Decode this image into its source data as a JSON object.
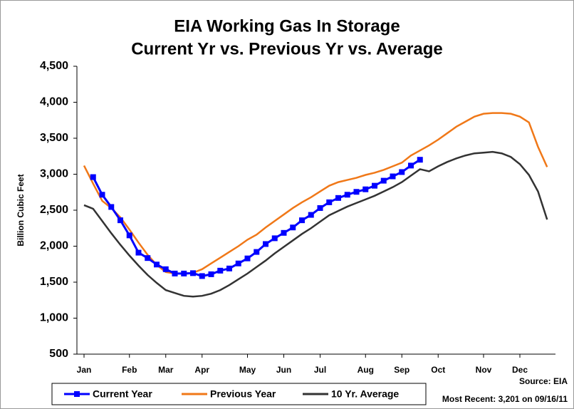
{
  "chart_data": {
    "type": "line",
    "title": "EIA Working Gas In Storage",
    "subtitle": "Current Yr vs. Previous Yr vs. Average",
    "y_label": "Billion Cubic Feet",
    "annotations": [
      "Source: EIA",
      "Most Recent: 3,201 on 09/16/11"
    ],
    "categories": [
      "Jan",
      null,
      null,
      null,
      null,
      "Feb",
      null,
      null,
      null,
      "Mar",
      null,
      null,
      null,
      "Apr",
      null,
      null,
      null,
      null,
      "May",
      null,
      null,
      null,
      "Jun",
      null,
      null,
      null,
      "Jul",
      null,
      null,
      null,
      null,
      "Aug",
      null,
      null,
      null,
      "Sep",
      null,
      null,
      null,
      "Oct",
      null,
      null,
      null,
      null,
      "Nov",
      null,
      null,
      null,
      "Dec",
      null,
      null,
      null
    ],
    "series": [
      {
        "name": "Current Year",
        "color": "#0000ff",
        "markers": true,
        "values": [
          null,
          2960,
          2715,
          2545,
          2360,
          2150,
          1910,
          1835,
          1745,
          1680,
          1620,
          1620,
          1625,
          1585,
          1610,
          1660,
          1690,
          1760,
          1830,
          1920,
          2030,
          2110,
          2185,
          2260,
          2360,
          2435,
          2530,
          2610,
          2670,
          2715,
          2755,
          2790,
          2840,
          2910,
          2970,
          3030,
          3120,
          3201,
          null,
          null,
          null,
          null,
          null,
          null,
          null,
          null,
          null,
          null,
          null,
          null,
          null,
          null
        ]
      },
      {
        "name": "Previous Year",
        "color": "#f07818",
        "values": [
          3120,
          2870,
          2630,
          2530,
          2400,
          2230,
          2050,
          1880,
          1740,
          1640,
          1620,
          1620,
          1630,
          1680,
          1760,
          1840,
          1920,
          2000,
          2090,
          2160,
          2260,
          2350,
          2440,
          2530,
          2610,
          2680,
          2760,
          2840,
          2890,
          2920,
          2950,
          2990,
          3020,
          3060,
          3110,
          3160,
          3260,
          3330,
          3400,
          3480,
          3570,
          3660,
          3730,
          3800,
          3840,
          3850,
          3850,
          3840,
          3800,
          3720,
          3380,
          3100
        ]
      },
      {
        "name": "10 Yr. Average",
        "color": "#333333",
        "values": [
          2570,
          2520,
          2350,
          2180,
          2020,
          1870,
          1730,
          1600,
          1490,
          1390,
          1350,
          1310,
          1300,
          1310,
          1340,
          1390,
          1460,
          1540,
          1620,
          1710,
          1800,
          1900,
          1990,
          2080,
          2170,
          2250,
          2340,
          2430,
          2490,
          2550,
          2600,
          2650,
          2700,
          2760,
          2820,
          2890,
          2980,
          3070,
          3040,
          3110,
          3170,
          3220,
          3260,
          3290,
          3300,
          3310,
          3290,
          3240,
          3140,
          2990,
          2760,
          2370
        ]
      }
    ],
    "ylim": [
      500,
      4500
    ],
    "yticks": [
      500,
      {
        "value": 1000,
        "label": "1,000"
      },
      {
        "value": 1500,
        "label": "1,500"
      },
      {
        "value": 2000,
        "label": "2,000"
      },
      {
        "value": 2500,
        "label": "2,500"
      },
      {
        "value": 3000,
        "label": "3,000"
      },
      {
        "value": 3500,
        "label": "3,500"
      },
      {
        "value": 4000,
        "label": "4,000"
      },
      {
        "value": 4500,
        "label": "4,500"
      }
    ],
    "grid": false,
    "legend": "bottom"
  }
}
